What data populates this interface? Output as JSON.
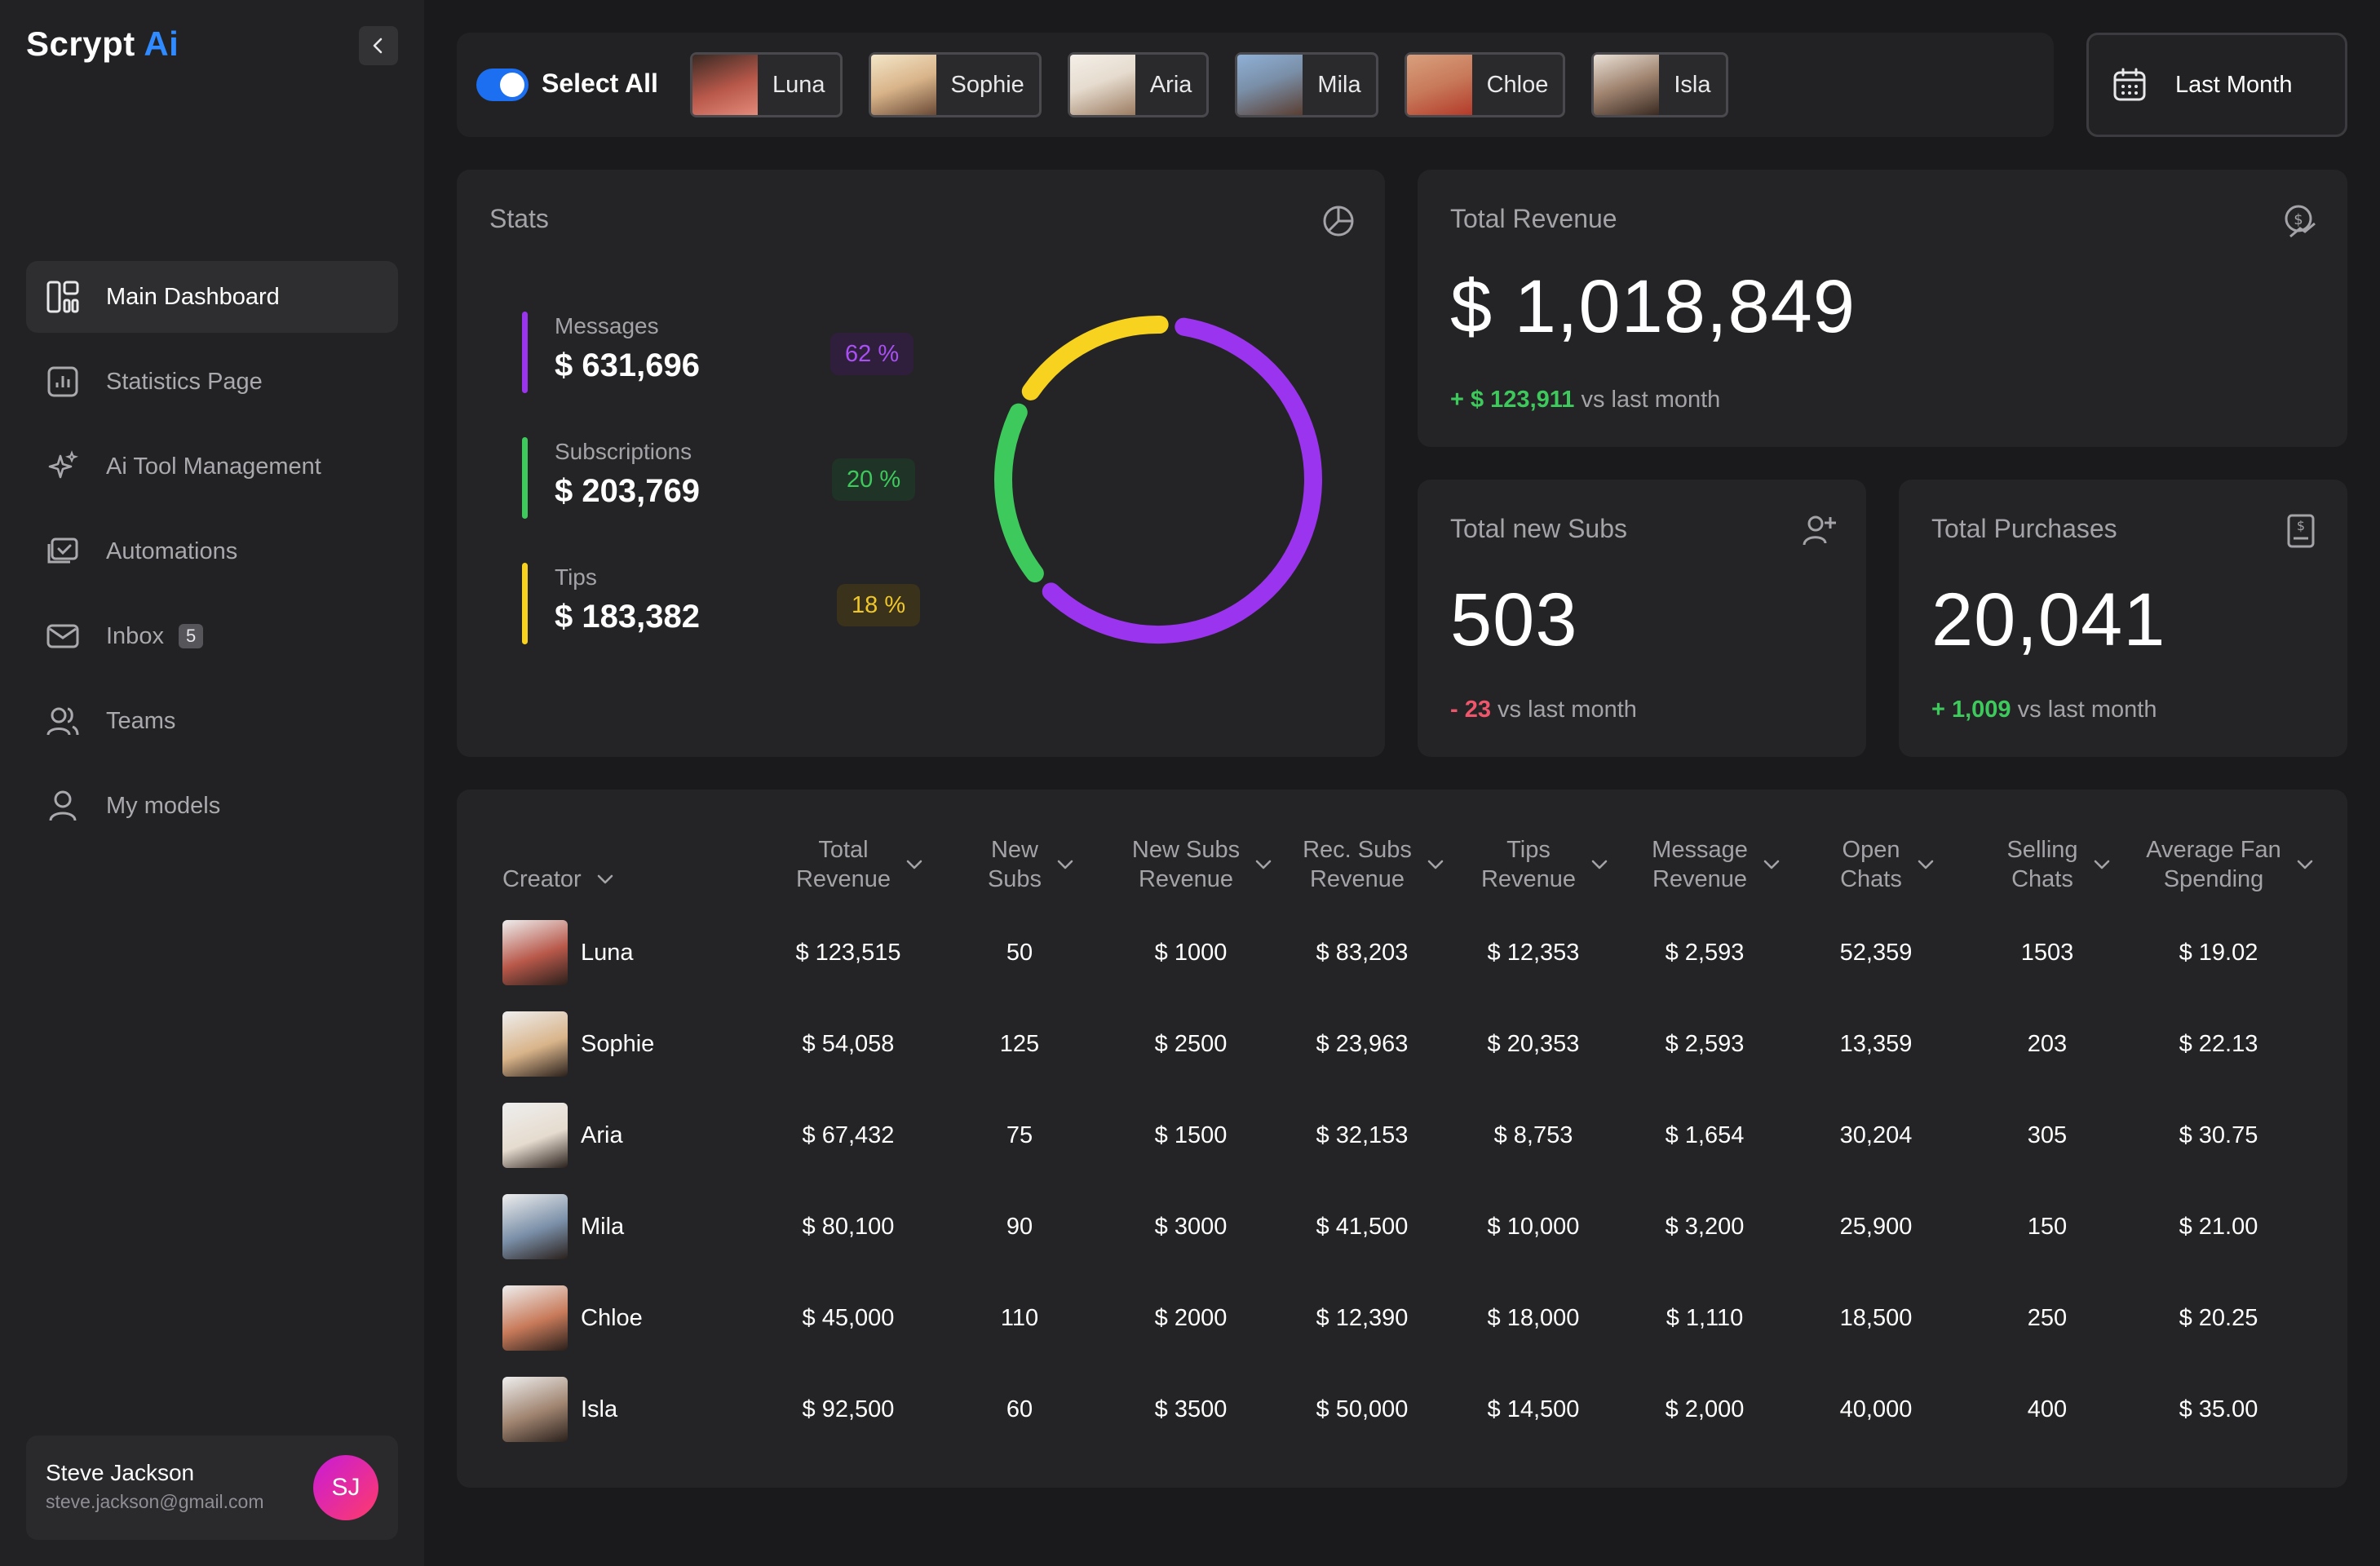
{
  "app": {
    "brand_main": "Scrypt",
    "brand_accent": "Ai"
  },
  "sidebar": {
    "items": [
      {
        "label": "Main Dashboard",
        "icon": "dashboard-icon",
        "active": true
      },
      {
        "label": "Statistics Page",
        "icon": "chart-icon"
      },
      {
        "label": "Ai Tool Management",
        "icon": "sparkle-icon"
      },
      {
        "label": "Automations",
        "icon": "automation-icon"
      },
      {
        "label": "Inbox",
        "icon": "mail-icon",
        "badge": "5"
      },
      {
        "label": "Teams",
        "icon": "team-icon"
      },
      {
        "label": "My models",
        "icon": "user-icon"
      }
    ],
    "user": {
      "name": "Steve Jackson",
      "email": "steve.jackson@gmail.com",
      "initials": "SJ"
    }
  },
  "topbar": {
    "select_all_label": "Select All",
    "select_all_on": true,
    "creators": [
      {
        "name": "Luna",
        "color": "#b8584a"
      },
      {
        "name": "Sophie",
        "color": "#d9b48a"
      },
      {
        "name": "Aria",
        "color": "#e6dccf"
      },
      {
        "name": "Mila",
        "color": "#7a8fa8"
      },
      {
        "name": "Chloe",
        "color": "#c87a5a"
      },
      {
        "name": "Isla",
        "color": "#a08470"
      }
    ],
    "date_filter": "Last Month"
  },
  "stats": {
    "title": "Stats",
    "items": [
      {
        "name": "Messages",
        "value": "$ 631,696",
        "pct": "62 %",
        "color": "#9b34ef"
      },
      {
        "name": "Subscriptions",
        "value": "$ 203,769",
        "pct": "20 %",
        "color": "#3ec95c"
      },
      {
        "name": "Tips",
        "value": "$ 183,382",
        "pct": "18 %",
        "color": "#f7d21e"
      }
    ]
  },
  "chart_data": {
    "type": "pie",
    "categories": [
      "Messages",
      "Subscriptions",
      "Tips"
    ],
    "values": [
      62,
      20,
      18
    ],
    "colors": [
      "#9b34ef",
      "#3ec95c",
      "#f7d21e"
    ]
  },
  "revenue": {
    "title": "Total Revenue",
    "value": "$ 1,018,849",
    "delta": "+ $ 123,911",
    "delta_suffix": "vs last month"
  },
  "subs": {
    "title": "Total new Subs",
    "value": "503",
    "delta": "- 23",
    "delta_suffix": "vs last month"
  },
  "purchases": {
    "title": "Total Purchases",
    "value": "20,041",
    "delta": "+ 1,009",
    "delta_suffix": "vs last month"
  },
  "table": {
    "headers": [
      {
        "line1": "Creator",
        "line2": ""
      },
      {
        "line1": "Total",
        "line2": "Revenue"
      },
      {
        "line1": "New",
        "line2": "Subs"
      },
      {
        "line1": "New Subs",
        "line2": "Revenue"
      },
      {
        "line1": "Rec. Subs",
        "line2": "Revenue"
      },
      {
        "line1": "Tips",
        "line2": "Revenue"
      },
      {
        "line1": "Message",
        "line2": "Revenue"
      },
      {
        "line1": "Open",
        "line2": "Chats"
      },
      {
        "line1": "Selling",
        "line2": "Chats"
      },
      {
        "line1": "Average Fan",
        "line2": "Spending"
      }
    ],
    "rows": [
      {
        "name": "Luna",
        "cells": [
          "$ 123,515",
          "50",
          "$ 1000",
          "$ 83,203",
          "$ 12,353",
          "$ 2,593",
          "52,359",
          "1503",
          "$ 19.02"
        ]
      },
      {
        "name": "Sophie",
        "cells": [
          "$ 54,058",
          "125",
          "$ 2500",
          "$ 23,963",
          "$ 20,353",
          "$ 2,593",
          "13,359",
          "203",
          "$ 22.13"
        ]
      },
      {
        "name": "Aria",
        "cells": [
          "$ 67,432",
          "75",
          "$ 1500",
          "$ 32,153",
          "$ 8,753",
          "$ 1,654",
          "30,204",
          "305",
          "$ 30.75"
        ]
      },
      {
        "name": "Mila",
        "cells": [
          "$ 80,100",
          "90",
          "$ 3000",
          "$ 41,500",
          "$ 10,000",
          "$ 3,200",
          "25,900",
          "150",
          "$ 21.00"
        ]
      },
      {
        "name": "Chloe",
        "cells": [
          "$ 45,000",
          "110",
          "$ 2000",
          "$ 12,390",
          "$ 18,000",
          "$ 1,110",
          "18,500",
          "250",
          "$ 20.25"
        ]
      },
      {
        "name": "Isla",
        "cells": [
          "$ 92,500",
          "60",
          "$ 3500",
          "$ 50,000",
          "$ 14,500",
          "$ 2,000",
          "40,000",
          "400",
          "$ 35.00"
        ]
      }
    ]
  }
}
